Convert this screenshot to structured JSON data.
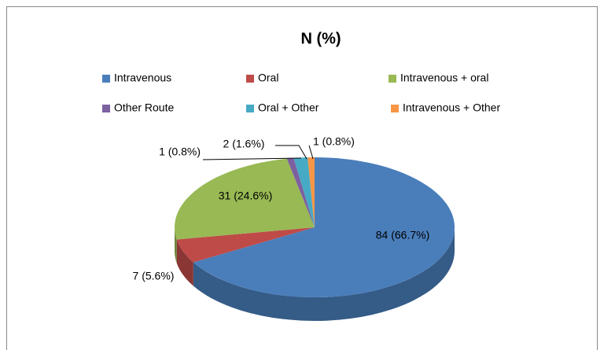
{
  "chart_data": {
    "type": "pie3d",
    "title": "N (%)",
    "categories": [
      "Intravenous",
      "Oral",
      "Intravenous + oral",
      "Other Route",
      "Oral + Other",
      "Intravenous + Other"
    ],
    "values": [
      84,
      7,
      31,
      1,
      2,
      1
    ],
    "value_labels": [
      "84 (66.7%)",
      "7 (5.6%)",
      "31 (24.6%)",
      "1 (0.8%)",
      "2 (1.6%)",
      "1 (0.8%)"
    ],
    "colors": [
      "#4a7ebb",
      "#be4b48",
      "#98b954",
      "#7d60a0",
      "#46aac5",
      "#f79646"
    ],
    "legend": "top"
  }
}
